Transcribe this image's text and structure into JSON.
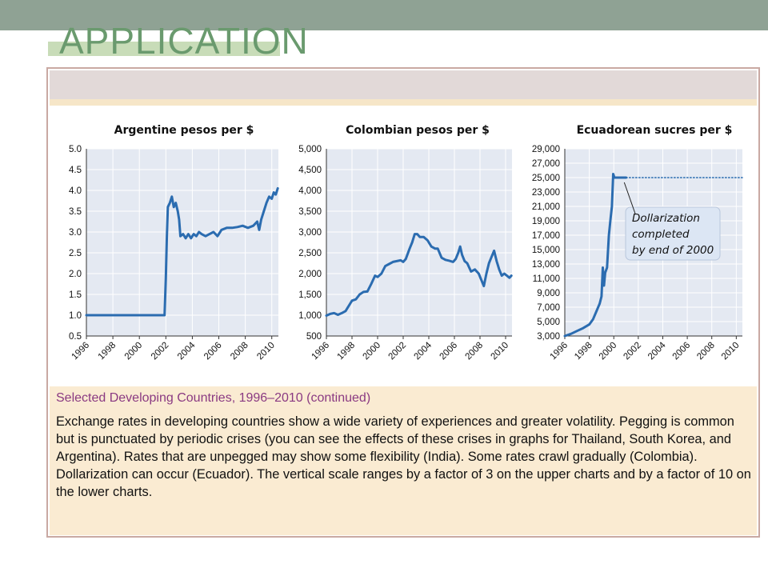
{
  "slide": {
    "title": "APPLICATION"
  },
  "caption": {
    "title": "Selected Developing Countries, 1996–2010 (continued)",
    "body": "Exchange rates in developing countries show a wide variety of experiences and greater volatility. Pegging is common but is punctuated by periodic crises (you can see the effects of these crises in graphs for Thailand, South Korea, and Argentina). Rates that are unpegged may show some flexibility (India). Some rates crawl gradually (Colombia). Dollarization can occur (Ecuador). The vertical scale ranges by a factor of 3 on the upper charts and by a factor of 10 on the lower charts."
  },
  "colors": {
    "series": "#2b6cb0",
    "panel_bg": "#e4e9f2",
    "annotation_box": "#dce6f4",
    "caption_title": "#8a3a82",
    "title": "#6a9a6e"
  },
  "chart_data": [
    {
      "type": "line",
      "title": "Argentine pesos per $",
      "xlabel": "",
      "ylabel": "",
      "xlim": [
        1996,
        2010.5
      ],
      "ylim": [
        0.5,
        5.0
      ],
      "yticks": [
        "0.5",
        "1.0",
        "1.5",
        "2.0",
        "2.5",
        "3.0",
        "3.5",
        "4.0",
        "4.5",
        "5.0"
      ],
      "xticks": [
        "1996",
        "1998",
        "2000",
        "2002",
        "2004",
        "2006",
        "2008",
        "2010"
      ],
      "grid": true,
      "series": [
        {
          "values": [
            [
              1996,
              1.0
            ],
            [
              2001.9,
              1.0
            ],
            [
              2002.0,
              1.9
            ],
            [
              2002.08,
              2.9
            ],
            [
              2002.15,
              3.6
            ],
            [
              2002.3,
              3.7
            ],
            [
              2002.45,
              3.85
            ],
            [
              2002.6,
              3.6
            ],
            [
              2002.75,
              3.7
            ],
            [
              2002.9,
              3.5
            ],
            [
              2003.0,
              3.3
            ],
            [
              2003.1,
              2.9
            ],
            [
              2003.3,
              2.95
            ],
            [
              2003.5,
              2.85
            ],
            [
              2003.7,
              2.95
            ],
            [
              2003.9,
              2.85
            ],
            [
              2004.1,
              2.95
            ],
            [
              2004.3,
              2.9
            ],
            [
              2004.5,
              3.0
            ],
            [
              2004.7,
              2.95
            ],
            [
              2005.0,
              2.9
            ],
            [
              2005.3,
              2.95
            ],
            [
              2005.6,
              3.0
            ],
            [
              2005.9,
              2.9
            ],
            [
              2006.2,
              3.05
            ],
            [
              2006.6,
              3.1
            ],
            [
              2007.0,
              3.1
            ],
            [
              2007.4,
              3.12
            ],
            [
              2007.8,
              3.15
            ],
            [
              2008.2,
              3.1
            ],
            [
              2008.6,
              3.15
            ],
            [
              2008.9,
              3.25
            ],
            [
              2009.05,
              3.05
            ],
            [
              2009.2,
              3.3
            ],
            [
              2009.4,
              3.5
            ],
            [
              2009.6,
              3.7
            ],
            [
              2009.8,
              3.85
            ],
            [
              2010.0,
              3.8
            ],
            [
              2010.15,
              3.95
            ],
            [
              2010.3,
              3.9
            ],
            [
              2010.45,
              4.05
            ]
          ]
        }
      ]
    },
    {
      "type": "line",
      "title": "Colombian pesos per $",
      "xlabel": "",
      "ylabel": "",
      "xlim": [
        1996,
        2010.5
      ],
      "ylim": [
        500,
        5000
      ],
      "yticks": [
        "500",
        "1,000",
        "1,500",
        "2,000",
        "2,500",
        "3,000",
        "3,500",
        "4,000",
        "4,500",
        "5,000"
      ],
      "xticks": [
        "1996",
        "1998",
        "2000",
        "2002",
        "2004",
        "2006",
        "2008",
        "2010"
      ],
      "grid": true,
      "series": [
        {
          "values": [
            [
              1996,
              990
            ],
            [
              1996.3,
              1030
            ],
            [
              1996.6,
              1050
            ],
            [
              1996.9,
              1010
            ],
            [
              1997.2,
              1050
            ],
            [
              1997.5,
              1100
            ],
            [
              1997.8,
              1250
            ],
            [
              1998.0,
              1350
            ],
            [
              1998.3,
              1380
            ],
            [
              1998.6,
              1500
            ],
            [
              1998.9,
              1560
            ],
            [
              1999.2,
              1570
            ],
            [
              1999.5,
              1750
            ],
            [
              1999.8,
              1950
            ],
            [
              2000.0,
              1920
            ],
            [
              2000.3,
              2000
            ],
            [
              2000.6,
              2180
            ],
            [
              2000.9,
              2230
            ],
            [
              2001.2,
              2280
            ],
            [
              2001.5,
              2300
            ],
            [
              2001.8,
              2320
            ],
            [
              2002.0,
              2280
            ],
            [
              2002.2,
              2350
            ],
            [
              2002.5,
              2600
            ],
            [
              2002.7,
              2750
            ],
            [
              2002.9,
              2950
            ],
            [
              2003.1,
              2950
            ],
            [
              2003.3,
              2880
            ],
            [
              2003.6,
              2880
            ],
            [
              2003.9,
              2800
            ],
            [
              2004.2,
              2650
            ],
            [
              2004.5,
              2600
            ],
            [
              2004.7,
              2600
            ],
            [
              2005.0,
              2380
            ],
            [
              2005.3,
              2330
            ],
            [
              2005.6,
              2310
            ],
            [
              2005.9,
              2280
            ],
            [
              2006.1,
              2350
            ],
            [
              2006.3,
              2500
            ],
            [
              2006.45,
              2650
            ],
            [
              2006.6,
              2450
            ],
            [
              2006.8,
              2300
            ],
            [
              2007.0,
              2250
            ],
            [
              2007.3,
              2050
            ],
            [
              2007.6,
              2100
            ],
            [
              2007.9,
              2000
            ],
            [
              2008.1,
              1850
            ],
            [
              2008.3,
              1700
            ],
            [
              2008.5,
              2000
            ],
            [
              2008.7,
              2250
            ],
            [
              2008.9,
              2400
            ],
            [
              2009.1,
              2550
            ],
            [
              2009.3,
              2300
            ],
            [
              2009.5,
              2100
            ],
            [
              2009.7,
              1950
            ],
            [
              2009.9,
              2000
            ],
            [
              2010.1,
              1950
            ],
            [
              2010.3,
              1900
            ],
            [
              2010.45,
              1950
            ]
          ]
        }
      ]
    },
    {
      "type": "line",
      "title": "Ecuadorean sucres per $",
      "xlabel": "",
      "ylabel": "",
      "xlim": [
        1996,
        2010.5
      ],
      "ylim": [
        3000,
        29000
      ],
      "yticks": [
        "3,000",
        "5,000",
        "7,000",
        "9,000",
        "11,000",
        "13,000",
        "15,000",
        "17,000",
        "19,000",
        "21,000",
        "23,000",
        "25,000",
        "27,000",
        "29,000"
      ],
      "xticks": [
        "1996",
        "1998",
        "2000",
        "2002",
        "2004",
        "2006",
        "2008",
        "2010"
      ],
      "grid": true,
      "series": [
        {
          "values": [
            [
              1996,
              3000
            ],
            [
              1996.5,
              3300
            ],
            [
              1997,
              3700
            ],
            [
              1997.5,
              4100
            ],
            [
              1998,
              4600
            ],
            [
              1998.3,
              5300
            ],
            [
              1998.6,
              6500
            ],
            [
              1998.85,
              7500
            ],
            [
              1999.0,
              8500
            ],
            [
              1999.1,
              12500
            ],
            [
              1999.2,
              10000
            ],
            [
              1999.3,
              11800
            ],
            [
              1999.45,
              12500
            ],
            [
              1999.6,
              17000
            ],
            [
              1999.75,
              19500
            ],
            [
              1999.85,
              21000
            ],
            [
              1999.95,
              25500
            ],
            [
              2000.05,
              25000
            ],
            [
              2001.0,
              25000
            ]
          ]
        },
        {
          "style": "dotted",
          "values": [
            [
              2001.0,
              25000
            ],
            [
              2010.5,
              25000
            ]
          ]
        }
      ],
      "annotations": [
        {
          "lines": [
            "Dollarization",
            "completed",
            "by end of 2000"
          ],
          "points_to": [
            2000.2,
            25000
          ]
        }
      ]
    }
  ]
}
